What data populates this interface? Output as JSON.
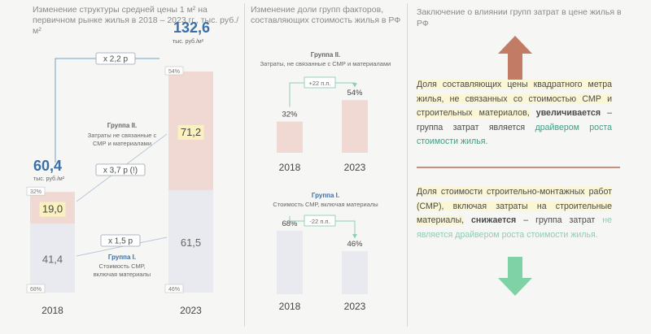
{
  "colors": {
    "group2_fill": "#efd9d2",
    "group1_fill": "#e8eaef",
    "highlight": "#fbf1be",
    "arrow_up": "#c27c65",
    "arrow_down": "#7fd1a6",
    "title_blue": "#3a6fa8",
    "teal": "#3f9d86"
  },
  "icons": {
    "up": "arrow-up-icon",
    "down": "arrow-down-icon"
  },
  "panel1": {
    "title": "Изменение структуры средней цены 1 м² на первичном рынке жилья в 2018 – 2023 гг., тыс. руб./м²",
    "chart_data": {
      "type": "bar",
      "stacked": true,
      "categories": [
        "2018",
        "2023"
      ],
      "series": [
        {
          "name": "Группа I. Стоимость СМР, включая материалы",
          "values": [
            41.4,
            61.5
          ],
          "value_labels": [
            "41,4",
            "61,5"
          ],
          "shares": [
            "68%",
            "46%"
          ]
        },
        {
          "name": "Группа II. Затраты не связанные с СМР и материалами",
          "values": [
            19.0,
            71.2
          ],
          "value_labels": [
            "19,0",
            "71,2"
          ],
          "shares": [
            "32%",
            "54%"
          ]
        }
      ],
      "totals": [
        60.4,
        132.6
      ],
      "total_labels": [
        "60,4",
        "132,6"
      ],
      "unit_labels": [
        "тыс. руб./м²",
        "тыс. руб./м²"
      ],
      "ratios": {
        "total": "x 2,2 р",
        "group2": "x 3,7 р (!)",
        "group1": "x 1,5 р"
      },
      "group2_label": {
        "title": "Группа II.",
        "line1": "Затраты не связанные с",
        "line2": "СМР и материалами"
      },
      "group1_label": {
        "title": "Группа I.",
        "line1": "Стоимость СМР,",
        "line2": "включая материалы"
      }
    }
  },
  "panel2": {
    "title": "Изменение доли групп факторов, составляющих стоимость жилья в РФ",
    "chart_data": [
      {
        "type": "bar",
        "title": "Группа II.",
        "subtitle": "Затраты, не связанные с СМР и материалами",
        "categories": [
          "2018",
          "2023"
        ],
        "values": [
          32,
          54
        ],
        "value_labels": [
          "32%",
          "54%"
        ],
        "change": "+22 п.п."
      },
      {
        "type": "bar",
        "title": "Группа I.",
        "subtitle": "Стоимость СМР, включая материалы",
        "categories": [
          "2018",
          "2023"
        ],
        "values": [
          68,
          46
        ],
        "value_labels": [
          "68%",
          "46%"
        ],
        "change": "-22 п.п."
      }
    ]
  },
  "panel3": {
    "title": "Заключение о влиянии групп затрат в цене жилья в РФ",
    "para1": {
      "a": "Доля составляющих цены квадратного метра жилья, не связанных со стоимостью СМР и строительных материалов,",
      "b": "увеличивается",
      "c": "–",
      "d": "группа затрат является",
      "e": "драйвером роста",
      "f": "стоимости жилья."
    },
    "para2": {
      "a": "Доля стоимости строительно-монтажных работ (СМР), включая затраты на строительные материалы,",
      "b": "снижается",
      "c": "– группа затрат",
      "d": "не является драйвером роста стоимости жилья."
    }
  }
}
